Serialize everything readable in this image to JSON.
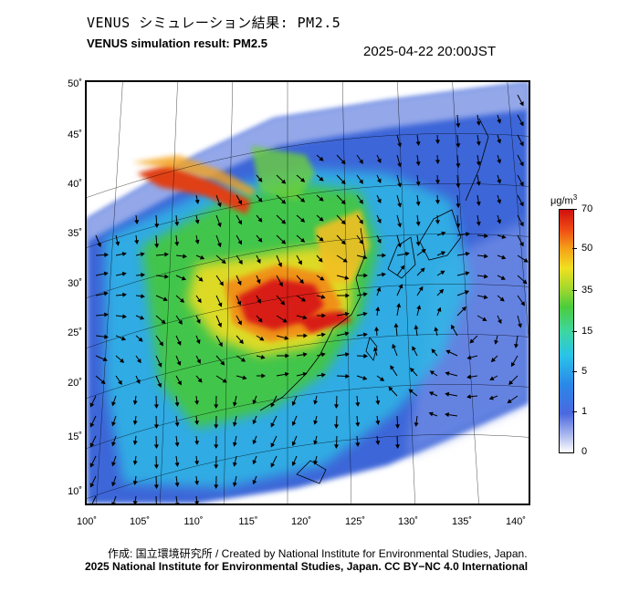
{
  "title_jp": "VENUS シミュレーション結果: PM2.5",
  "title_en": "VENUS simulation result: PM2.5",
  "timestamp": "2025-04-22 20:00JST",
  "map": {
    "lat_ticks": [
      "50˚",
      "45˚",
      "40˚",
      "35˚",
      "30˚",
      "25˚",
      "20˚",
      "15˚",
      "10˚"
    ],
    "lon_ticks": [
      "100˚",
      "105˚",
      "110˚",
      "115˚",
      "120˚",
      "125˚",
      "130˚",
      "135˚",
      "140˚"
    ]
  },
  "colorbar": {
    "unit_main": "μg/m",
    "unit_sup": "3",
    "labels": [
      "70",
      "50",
      "35",
      "15",
      "5",
      "1",
      "0"
    ]
  },
  "credits": {
    "line1": "作成: 国立環境研究所 / Created by National Institute for Environmental Studies, Japan.",
    "line2": "2025 National Institute for Environmental Studies, Japan. CC BY−NC 4.0 International"
  },
  "colors": {
    "very_high": "#d01010",
    "high": "#f6a018",
    "mid": "#4ccc3c",
    "low": "#29c4e8",
    "very_low": "#4a68e0",
    "zero": "#ffffff"
  }
}
